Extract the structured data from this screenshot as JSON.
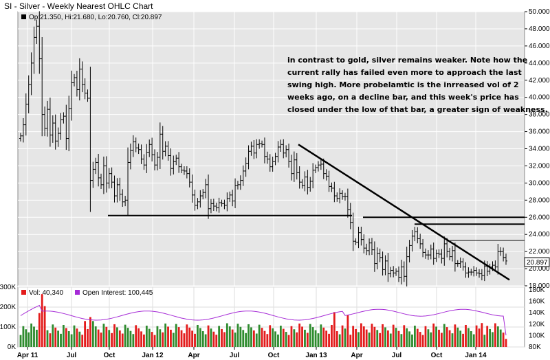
{
  "chart_title": "SI - Silver - Weekly Nearest OHLC Chart",
  "price_legend": "Op:21.350, Hi:21.680, Lo:20.760, Cl:20.897",
  "last_price": "20.897",
  "vol_legend": "Vol: 40,340",
  "oi_legend": "Open Interest: 100,445",
  "annotation": [
    "in contrast to gold, silver remains weaker.  Note how the",
    "current rally has failed even more to approach the last",
    "swing high.  More probelamtic is the inrreased vol of 2",
    "weeks ago, on a decline bar, and this week's price has",
    "closed under the low of that bar, a greater sign of weakness."
  ],
  "colors": {
    "price_panel_bg": "#e6e6e6",
    "bar": "#000000",
    "vol_up": "#2e8b2e",
    "vol_down": "#e31b1b",
    "oi_line": "#a52ad6",
    "trendline": "#000000"
  },
  "chart_data": [
    {
      "type": "ohlc",
      "title": "SI - Silver - Weekly Nearest OHLC Chart",
      "y_axis_side": "right",
      "ylim": [
        18,
        50
      ],
      "y_ticks": [
        "18.000",
        "20.000",
        "22.000",
        "24.000",
        "26.000",
        "28.000",
        "30.000",
        "32.000",
        "34.000",
        "36.000",
        "38.000",
        "40.000",
        "42.000",
        "44.000",
        "46.000",
        "48.000",
        "50.000"
      ],
      "x_tick_labels": [
        "Apr 11",
        "Jul",
        "Oct",
        "Jan 12",
        "Apr",
        "Jul",
        "Oct",
        "Jan 13",
        "Apr",
        "Jul",
        "Oct",
        "Jan 14"
      ],
      "weekly_close_approx": [
        35.5,
        36.8,
        39.2,
        41.5,
        44.0,
        47.0,
        48.3,
        44.5,
        38.0,
        36.4,
        38.6,
        35.6,
        37.0,
        34.9,
        35.8,
        37.4,
        37.8,
        35.2,
        38.7,
        41.7,
        42.3,
        40.9,
        43.3,
        41.5,
        40.5,
        39.9,
        30.3,
        31.6,
        32.4,
        30.6,
        29.8,
        32.0,
        30.0,
        31.1,
        30.1,
        28.5,
        29.8,
        28.7,
        27.8,
        28.0,
        32.4,
        33.8,
        34.8,
        34.1,
        33.9,
        32.8,
        32.1,
        33.6,
        34.5,
        33.3,
        32.1,
        33.0,
        35.7,
        33.7,
        34.3,
        33.2,
        31.7,
        32.5,
        32.9,
        31.9,
        31.5,
        31.4,
        31.1,
        30.1,
        28.6,
        27.4,
        27.8,
        28.5,
        28.9,
        29.8,
        27.0,
        27.6,
        27.3,
        27.1,
        27.7,
        27.6,
        27.4,
        28.2,
        28.6,
        27.9,
        29.7,
        29.8,
        30.3,
        31.4,
        32.3,
        33.7,
        34.3,
        33.5,
        34.5,
        34.6,
        34.5,
        33.1,
        32.8,
        31.9,
        32.5,
        33.1,
        34.2,
        34.5,
        33.5,
        33.9,
        32.5,
        31.1,
        32.7,
        31.2,
        30.1,
        29.7,
        30.7,
        29.5,
        30.2,
        31.5,
        31.8,
        32.1,
        32.2,
        31.1,
        30.8,
        29.6,
        29.4,
        28.5,
        28.2,
        28.8,
        28.4,
        28.4,
        26.9,
        25.4,
        23.2,
        23.1,
        24.2,
        23.4,
        22.4,
        22.1,
        23.0,
        22.2,
        20.6,
        21.8,
        21.3,
        19.9,
        20.9,
        19.4,
        19.8,
        19.5,
        19.7,
        19.0,
        20.2,
        19.1,
        21.4,
        22.7,
        23.8,
        24.3,
        23.5,
        22.9,
        21.9,
        21.6,
        21.6,
        22.3,
        21.2,
        21.8,
        21.7,
        21.2,
        22.9,
        22.0,
        21.4,
        22.1,
        20.6,
        20.6,
        20.8,
        20.2,
        19.5,
        19.6,
        19.6,
        19.8,
        19.5,
        19.4,
        19.2,
        20.3,
        19.7,
        20.2,
        20.4,
        20.2,
        22.0,
        22.0,
        21.3,
        20.9
      ],
      "horizontal_lines": [
        26.2,
        26.0,
        25.2,
        23.3
      ],
      "trendline": {
        "from": [
          34.5
        ],
        "to": [
          18.7
        ]
      }
    },
    {
      "type": "bar",
      "title": "",
      "series": [
        {
          "name": "Vol",
          "last": "40,340"
        },
        {
          "name": "Open Interest",
          "last": "100,445"
        }
      ],
      "left_ticks": [
        "0K",
        "100K",
        "200K",
        "300K"
      ],
      "right_ticks": [
        "80K",
        "100K",
        "120K",
        "140K",
        "160K",
        "180K"
      ],
      "ylim": [
        0,
        300000
      ],
      "oi_ylim": [
        80000,
        180000
      ]
    }
  ]
}
